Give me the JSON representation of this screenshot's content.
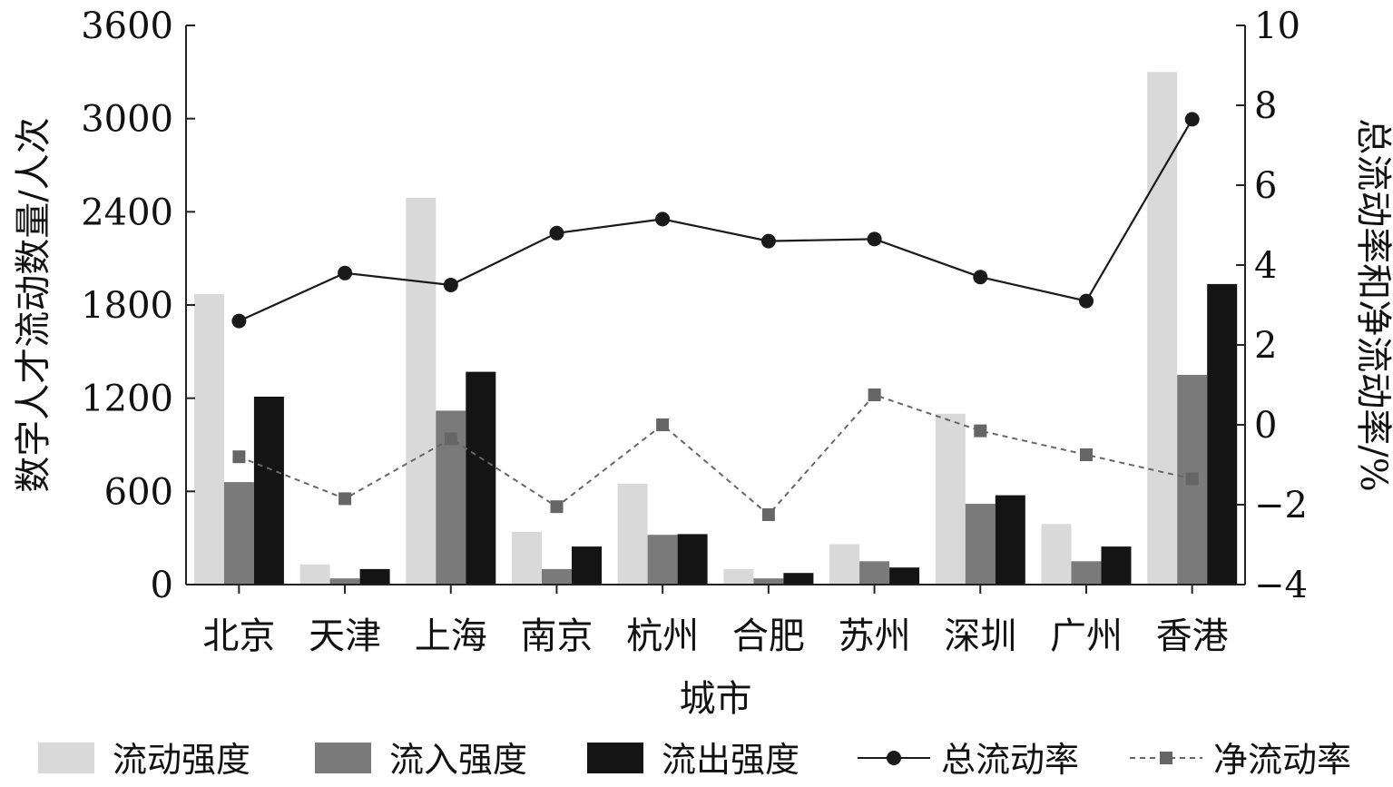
{
  "chart_data": {
    "type": "bar",
    "title": "",
    "xlabel": "城市",
    "ylabel_left": "数字人才流动数量/人次",
    "ylabel_right": "总流动率和净流动率/%",
    "categories": [
      "北京",
      "天津",
      "上海",
      "南京",
      "杭州",
      "合肥",
      "苏州",
      "深圳",
      "广州",
      "香港"
    ],
    "left_axis": {
      "ylim": [
        0,
        3600
      ],
      "ticks": [
        0,
        600,
        1200,
        1800,
        2400,
        3000,
        3600
      ],
      "tick_labels": [
        "0",
        "600",
        "1200",
        "1800",
        "2400",
        "3000",
        "3600"
      ]
    },
    "right_axis": {
      "ylim": [
        -4,
        10
      ],
      "ticks": [
        -4,
        -2,
        0,
        2,
        4,
        6,
        8,
        10
      ],
      "tick_labels": [
        "−4",
        "−2",
        "0",
        "2",
        "4",
        "6",
        "8",
        "10"
      ]
    },
    "series": [
      {
        "name": "流动强度",
        "type": "bar",
        "axis": "left",
        "color": "#d9d9d9",
        "values": [
          1870,
          130,
          2490,
          340,
          650,
          100,
          260,
          1100,
          390,
          3300
        ]
      },
      {
        "name": "流入强度",
        "type": "bar",
        "axis": "left",
        "color": "#7a7a7a",
        "values": [
          660,
          40,
          1120,
          100,
          320,
          40,
          150,
          520,
          150,
          1350
        ]
      },
      {
        "name": "流出强度",
        "type": "bar",
        "axis": "left",
        "color": "#141414",
        "values": [
          1210,
          100,
          1370,
          245,
          325,
          75,
          110,
          575,
          245,
          1935
        ]
      },
      {
        "name": "总流动率",
        "type": "line",
        "axis": "right",
        "style": "solid",
        "marker": "circle",
        "color": "#1a1a1a",
        "values": [
          2.6,
          3.8,
          3.5,
          4.8,
          5.15,
          4.6,
          4.65,
          3.7,
          3.1,
          7.65
        ]
      },
      {
        "name": "净流动率",
        "type": "line",
        "axis": "right",
        "style": "dashed",
        "marker": "square",
        "color": "#666666",
        "values": [
          -0.8,
          -1.85,
          -0.35,
          -2.05,
          0.0,
          -2.25,
          0.75,
          -0.15,
          -0.75,
          -1.35
        ]
      }
    ],
    "legend": {
      "position": "bottom",
      "entries": [
        "流动强度",
        "流入强度",
        "流出强度",
        "总流动率",
        "净流动率"
      ]
    },
    "grid": false
  }
}
